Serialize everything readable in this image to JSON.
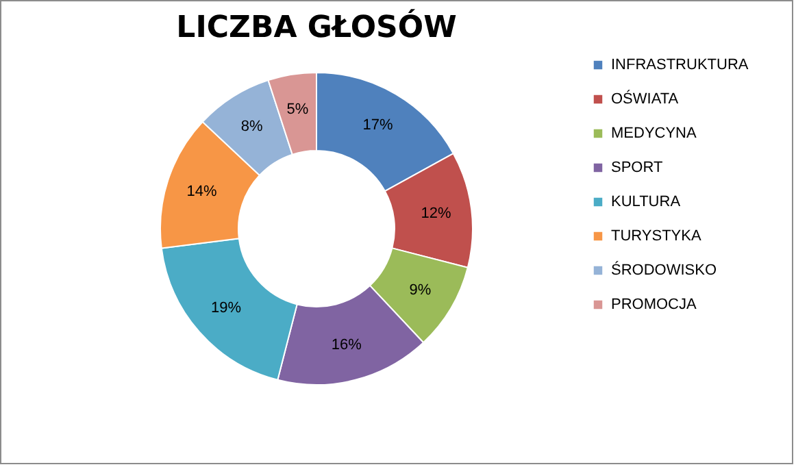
{
  "chart_data": {
    "type": "donut",
    "title": "LICZBA GŁOSÓW",
    "categories": [
      "INFRASTRUKTURA",
      "OŚWIATA",
      "MEDYCYNA",
      "SPORT",
      "KULTURA",
      "TURYSTYKA",
      "ŚRODOWISKO",
      "PROMOCJA"
    ],
    "values": [
      17,
      12,
      9,
      16,
      19,
      14,
      8,
      5
    ],
    "colors": [
      "#4f81bd",
      "#c0504d",
      "#9bbb59",
      "#8064a2",
      "#4bacc6",
      "#f79646",
      "#95b3d7",
      "#d99694"
    ],
    "value_labels": [
      "17%",
      "12%",
      "9%",
      "16%",
      "19%",
      "14%",
      "8%",
      "5%"
    ],
    "legend": "right"
  }
}
